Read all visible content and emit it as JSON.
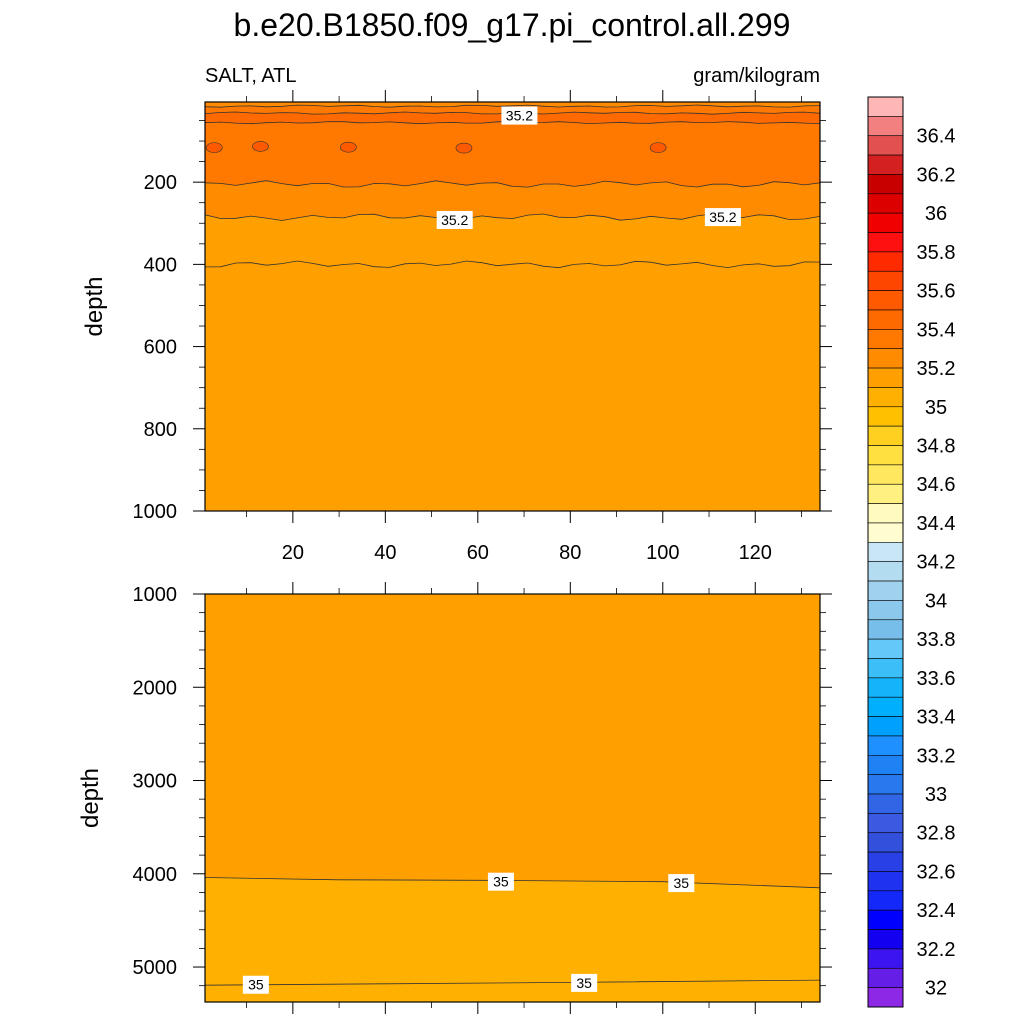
{
  "title": "b.e20.B1850.f09_g17.pi_control.all.299",
  "left_label": "SALT, ATL",
  "right_label": "gram/kilogram",
  "chart_data": [
    {
      "type": "heatmap",
      "panel": "upper",
      "ylabel": "depth",
      "xlim": [
        1,
        134
      ],
      "ylim": [
        5,
        1000
      ],
      "y_reversed": true,
      "xticks": [
        20,
        40,
        60,
        80,
        100,
        120
      ],
      "yticks": [
        200,
        400,
        600,
        800,
        1000
      ],
      "fill_bands_top_to_bottom": [
        {
          "range": "35.1–35.2",
          "color": "#ff8c00"
        },
        {
          "range": "35.2–35.3",
          "color": "#ff7800"
        },
        {
          "range": "35.3–35.4",
          "color": "#ff6a00"
        },
        {
          "range": "35.2–35.3",
          "color": "#ff7800"
        },
        {
          "range": "35.1–35.2",
          "color": "#ff8c00"
        },
        {
          "range": "35.0–35.1",
          "color": "#ffa000"
        }
      ],
      "contours": [
        {
          "level": 35.1,
          "y_mean": 15
        },
        {
          "level": 35.2,
          "y_mean": 32
        },
        {
          "level": 35.3,
          "y_mean": 55
        },
        {
          "level": 35.3,
          "y_mean": 205
        },
        {
          "level": 35.2,
          "y_mean": 285
        },
        {
          "level": 35.1,
          "y_mean": 400
        }
      ],
      "contour_labels": [
        {
          "text": "35.2",
          "x": 69,
          "y": 38
        },
        {
          "text": "35.2",
          "x": 55,
          "y": 292
        },
        {
          "text": "35.2",
          "x": 113,
          "y": 285
        }
      ]
    },
    {
      "type": "heatmap",
      "panel": "lower",
      "ylabel": "depth",
      "xlim": [
        1,
        134
      ],
      "ylim": [
        1000,
        5375
      ],
      "y_reversed": true,
      "yticks": [
        1000,
        2000,
        3000,
        4000,
        5000
      ],
      "fill_bands_top_to_bottom": [
        {
          "range": "35.0–35.1",
          "color": "#ffa000"
        },
        {
          "range": "34.9–35.0",
          "color": "#ffb000"
        }
      ],
      "contours": [
        {
          "level": 35.0,
          "depth_path": [
            [
              1,
              4040
            ],
            [
              30,
              4065
            ],
            [
              60,
              4070
            ],
            [
              100,
              4085
            ],
            [
              134,
              4150
            ]
          ]
        },
        {
          "level": 34.9,
          "depth_path": [
            [
              1,
              5195
            ],
            [
              40,
              5180
            ],
            [
              80,
              5165
            ],
            [
              134,
              5140
            ]
          ]
        }
      ],
      "contour_labels": [
        {
          "text": "35",
          "x": 65,
          "y": 4085
        },
        {
          "text": "35",
          "x": 104,
          "y": 4100
        },
        {
          "text": "35",
          "x": 12,
          "y": 5190
        },
        {
          "text": "35",
          "x": 83,
          "y": 5170
        }
      ]
    }
  ],
  "colorbar": {
    "labels": [
      "36.4",
      "36.2",
      "36",
      "35.8",
      "35.6",
      "35.4",
      "35.2",
      "35",
      "34.8",
      "34.6",
      "34.4",
      "34.2",
      "34",
      "33.8",
      "33.6",
      "33.4",
      "33.2",
      "33",
      "32.8",
      "32.6",
      "32.4",
      "32.2",
      "32"
    ],
    "colors_top_to_bottom": [
      "#ffb6b6",
      "#f28080",
      "#e25050",
      "#d42020",
      "#c80000",
      "#dc0000",
      "#f00000",
      "#ff1010",
      "#ff2a00",
      "#ff4600",
      "#ff5a00",
      "#ff6a00",
      "#ff7800",
      "#ff8c00",
      "#ffa000",
      "#ffb000",
      "#ffc000",
      "#ffd020",
      "#ffe040",
      "#ffe860",
      "#fff080",
      "#fffac0",
      "#fffdd0",
      "#c8e6f5",
      "#b4dcf0",
      "#a0d2ee",
      "#8cc8ec",
      "#78beea",
      "#64c8f8",
      "#3cbef8",
      "#14b4fa",
      "#00b0ff",
      "#00a0ff",
      "#1e90ff",
      "#1e82f5",
      "#2878ee",
      "#3264e6",
      "#3c5ae1",
      "#3250dc",
      "#2840e6",
      "#1e32f0",
      "#1428fa",
      "#0000ff",
      "#1400f0",
      "#3c14f0",
      "#641ee6",
      "#8c28e6"
    ]
  }
}
